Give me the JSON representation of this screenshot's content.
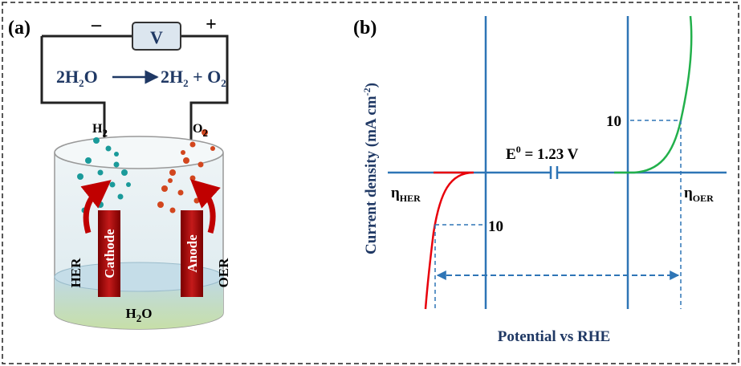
{
  "panel_a": {
    "label": "(a)",
    "minus": "–",
    "plus": "+",
    "meter": "V",
    "reaction": {
      "lhs": [
        "2H",
        "2",
        "O"
      ],
      "rhs": [
        "2H",
        "2",
        " + O",
        "2"
      ]
    },
    "cathode_gas": [
      "H",
      "2"
    ],
    "anode_gas": [
      "O",
      "2"
    ],
    "cathode": "Cathode",
    "anode": "Anode",
    "left_reaction": "HER",
    "right_reaction": "OER",
    "electrolyte": [
      "H",
      "2",
      "O"
    ]
  },
  "panel_b": {
    "label": "(b)",
    "y_axis": [
      "Current density (mA cm",
      "-2",
      ")"
    ],
    "x_axis": "Potential vs RHE",
    "equilibrium": [
      "E",
      "0",
      " = 1.23 V"
    ],
    "her_current": "10",
    "oer_current": "10",
    "her_overpotential": [
      "η",
      "HER"
    ],
    "oer_overpotential": [
      "η",
      "OER"
    ]
  }
}
